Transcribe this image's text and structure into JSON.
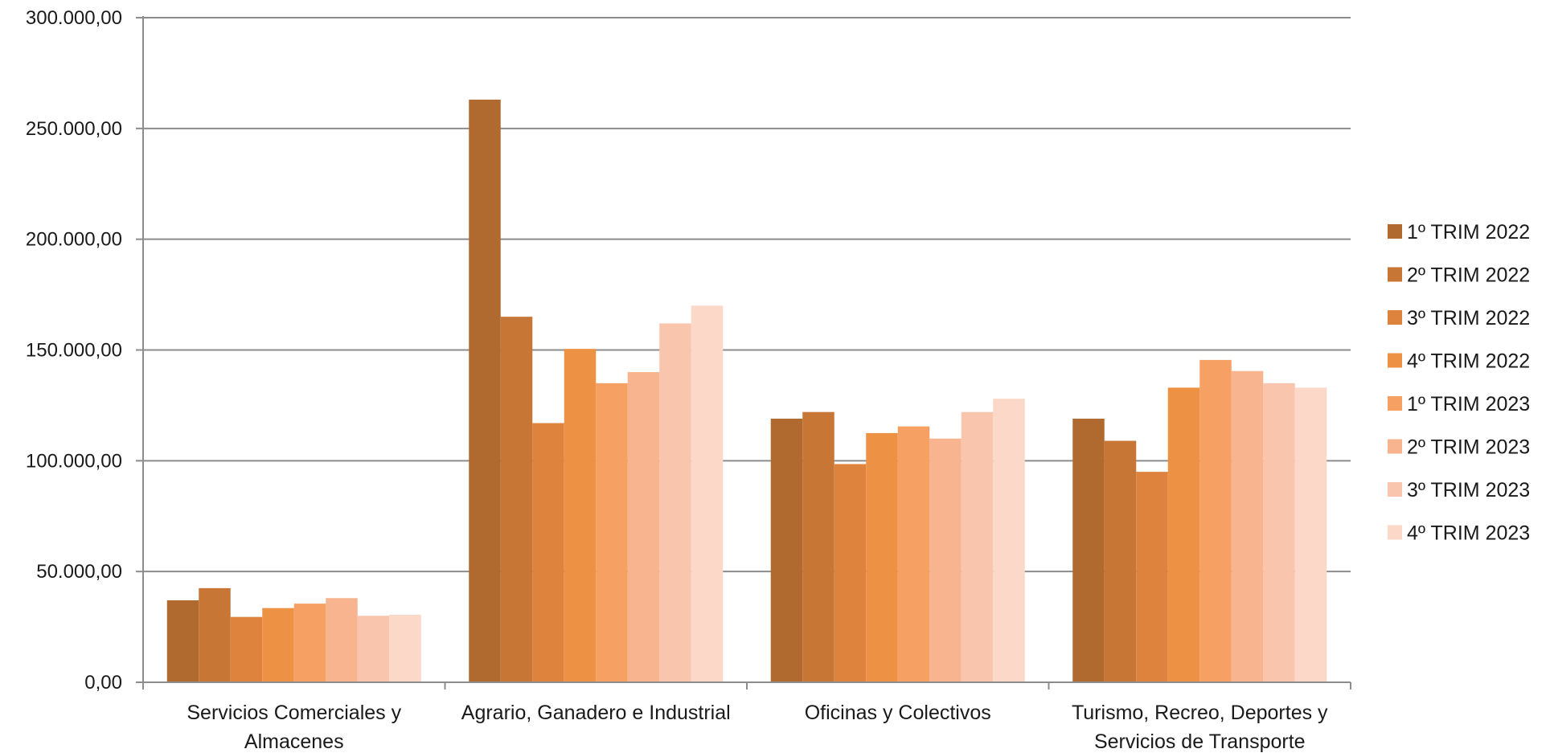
{
  "chart_data": {
    "type": "bar",
    "title": "",
    "xlabel": "",
    "ylabel": "",
    "ylim": [
      0,
      300000
    ],
    "y_ticks": [
      0,
      50000,
      100000,
      150000,
      200000,
      250000,
      300000
    ],
    "y_tick_labels": [
      "0,00",
      "50.000,00",
      "100.000,00",
      "150.000,00",
      "200.000,00",
      "250.000,00",
      "300.000,00"
    ],
    "grid": true,
    "legend_position": "right",
    "categories": [
      [
        "Servicios Comerciales y",
        "Almacenes"
      ],
      [
        "Agrario, Ganadero e Industrial"
      ],
      [
        "Oficinas y Colectivos"
      ],
      [
        "Turismo, Recreo, Deportes y",
        "Servicios de Transporte"
      ]
    ],
    "series": [
      {
        "name": "1º TRIM 2022",
        "color": "#b06a2f",
        "values": [
          37000,
          263000,
          119000,
          119000
        ]
      },
      {
        "name": "2º TRIM 2022",
        "color": "#c87636",
        "values": [
          42500,
          165000,
          122000,
          109000
        ]
      },
      {
        "name": "3º TRIM 2022",
        "color": "#dd833d",
        "values": [
          29500,
          117000,
          98500,
          95000
        ]
      },
      {
        "name": "4º TRIM 2022",
        "color": "#ed9245",
        "values": [
          33500,
          150500,
          112500,
          133000
        ]
      },
      {
        "name": "1º TRIM 2023",
        "color": "#f6a064",
        "values": [
          35500,
          135000,
          115500,
          145500
        ]
      },
      {
        "name": "2º TRIM 2023",
        "color": "#f7b48e",
        "values": [
          38000,
          140000,
          110000,
          140500
        ]
      },
      {
        "name": "3º TRIM 2023",
        "color": "#f9c6ad",
        "values": [
          30000,
          162000,
          122000,
          135000
        ]
      },
      {
        "name": "4º TRIM 2023",
        "color": "#fbd8c8",
        "values": [
          30500,
          170000,
          128000,
          133000
        ]
      }
    ]
  }
}
